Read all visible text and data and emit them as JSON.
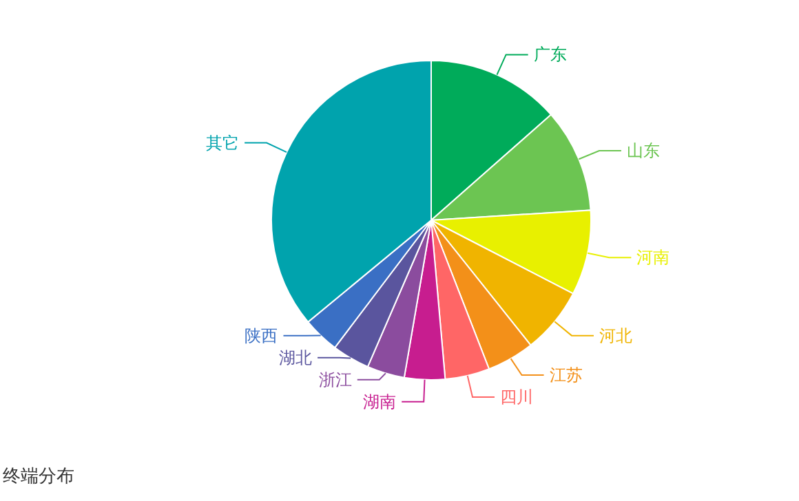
{
  "chart_data": {
    "type": "pie",
    "title": "终端分布",
    "categories": [
      "广东",
      "山东",
      "河南",
      "河北",
      "江苏",
      "四川",
      "湖南",
      "浙江",
      "湖北",
      "陕西",
      "其它"
    ],
    "values": [
      13.5,
      10.5,
      8.6,
      6.7,
      4.8,
      4.5,
      4.1,
      3.8,
      3.8,
      3.7,
      36.0
    ],
    "colors": [
      "#00ab5a",
      "#6cc552",
      "#e8f000",
      "#f0b400",
      "#f39019",
      "#ff6666",
      "#c71d8f",
      "#8b4c9e",
      "#5a559e",
      "#3a6fc4",
      "#00a3ad"
    ]
  }
}
